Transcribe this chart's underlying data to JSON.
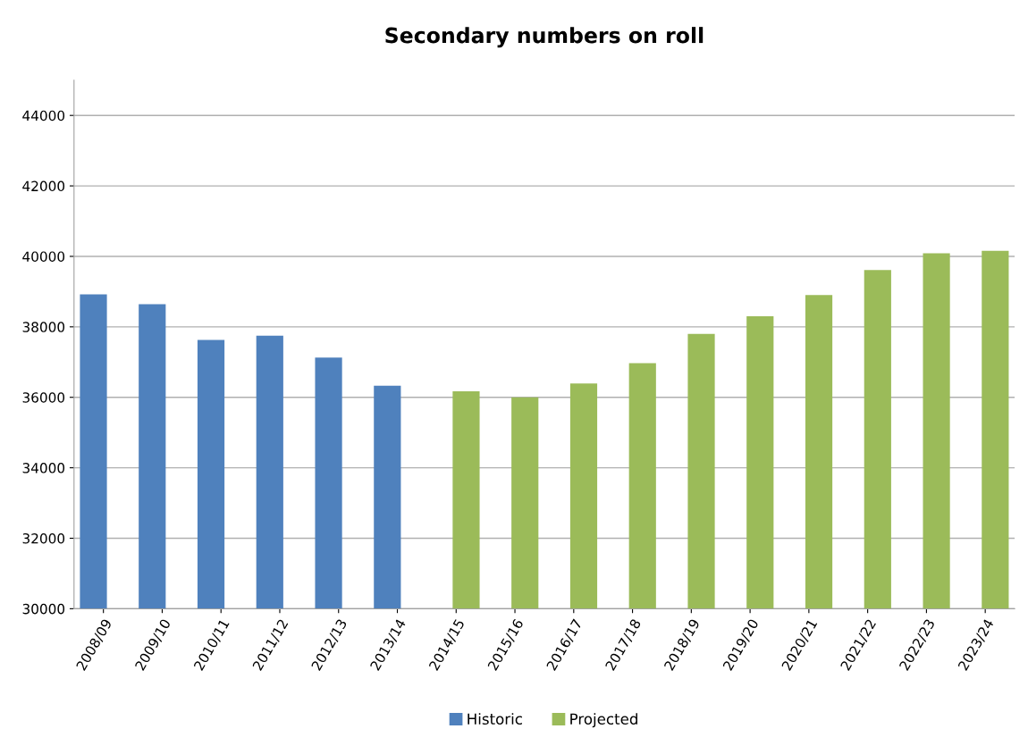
{
  "chart_data": {
    "type": "bar",
    "title": "Secondary numbers on roll",
    "categories": [
      "2008/09",
      "2009/10",
      "2010/11",
      "2011/12",
      "2012/13",
      "2013/14",
      "2014/15",
      "2015/16",
      "2016/17",
      "2017/18",
      "2018/19",
      "2019/20",
      "2020/21",
      "2021/22",
      "2022/23",
      "2023/24"
    ],
    "series": [
      {
        "name": "Historic",
        "color": "#4f81bd",
        "values": [
          38920,
          38640,
          37630,
          37750,
          37130,
          36330,
          null,
          null,
          null,
          null,
          null,
          null,
          null,
          null,
          null,
          null
        ]
      },
      {
        "name": "Projected",
        "color": "#9bbb59",
        "values": [
          null,
          null,
          null,
          null,
          null,
          null,
          36170,
          36000,
          36390,
          36970,
          37800,
          38300,
          38900,
          39610,
          40090,
          40160
        ]
      }
    ],
    "ylim": [
      30000,
      45000
    ],
    "yticks": [
      30000,
      32000,
      34000,
      36000,
      38000,
      40000,
      42000,
      44000
    ],
    "grid": "y",
    "legend": "bottom"
  }
}
